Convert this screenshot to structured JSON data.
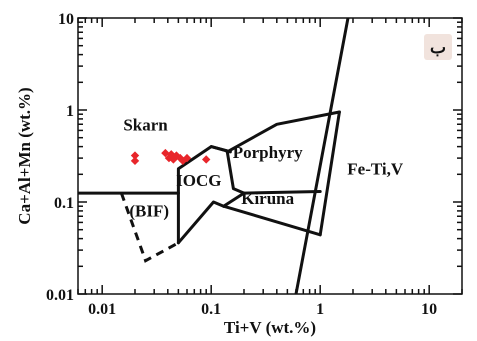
{
  "chart_data": {
    "type": "scatter",
    "xlabel": "Ti+V (wt.%)",
    "ylabel": "Ca+Al+Mn (wt.%)",
    "xscale": "log",
    "yscale": "log",
    "xlim": [
      0.006,
      20
    ],
    "ylim": [
      0.01,
      10
    ],
    "x_ticks": [
      {
        "value": 0.01,
        "label": "0.01"
      },
      {
        "value": 0.1,
        "label": "0.1"
      },
      {
        "value": 1,
        "label": "1"
      },
      {
        "value": 10,
        "label": "10"
      }
    ],
    "y_ticks": [
      {
        "value": 0.01,
        "label": "0.01"
      },
      {
        "value": 0.1,
        "label": "0.1"
      },
      {
        "value": 1,
        "label": "1"
      },
      {
        "value": 10,
        "label": "10"
      }
    ],
    "corner_mark": "ب",
    "regions": [
      {
        "name": "Skarn",
        "label_at": [
          0.025,
          0.6
        ]
      },
      {
        "name": "(BIF)",
        "label_at": [
          0.027,
          0.07
        ]
      },
      {
        "name": "IOCG",
        "label_at": [
          0.077,
          0.15
        ]
      },
      {
        "name": "Porphyry",
        "label_at": [
          0.33,
          0.3
        ]
      },
      {
        "name": "Kiruna",
        "label_at": [
          0.33,
          0.095
        ]
      },
      {
        "name": "Fe-Ti,V",
        "label_at": [
          3.2,
          0.2
        ]
      }
    ],
    "boundaries": [
      {
        "style": "solid",
        "points": [
          [
            0.006,
            0.125
          ],
          [
            0.05,
            0.125
          ]
        ]
      },
      {
        "style": "solid",
        "points": [
          [
            0.05,
            0.036
          ],
          [
            0.05,
            0.23
          ],
          [
            0.1,
            0.4
          ],
          [
            0.14,
            0.36
          ],
          [
            0.16,
            0.14
          ],
          [
            0.2,
            0.125
          ],
          [
            1.0,
            0.13
          ]
        ]
      },
      {
        "style": "solid",
        "points": [
          [
            0.05,
            0.036
          ],
          [
            0.105,
            0.1
          ],
          [
            0.13,
            0.09
          ]
        ]
      },
      {
        "style": "solid",
        "points": [
          [
            0.14,
            0.35
          ],
          [
            0.4,
            0.7
          ],
          [
            1.5,
            0.95
          ]
        ]
      },
      {
        "style": "solid",
        "points": [
          [
            0.13,
            0.09
          ],
          [
            0.2,
            0.125
          ]
        ]
      },
      {
        "style": "solid",
        "points": [
          [
            0.13,
            0.09
          ],
          [
            1.0,
            0.044
          ]
        ]
      },
      {
        "style": "solid",
        "points": [
          [
            0.15,
            0.35
          ],
          [
            0.1,
            0.4
          ]
        ]
      },
      {
        "style": "solid",
        "points": [
          [
            1.5,
            0.95
          ],
          [
            1.0,
            0.044
          ]
        ]
      },
      {
        "style": "solid",
        "points": [
          [
            0.6,
            0.01
          ],
          [
            1.8,
            10
          ]
        ]
      },
      {
        "style": "dashed",
        "points": [
          [
            0.015,
            0.125
          ],
          [
            0.025,
            0.023
          ],
          [
            0.05,
            0.036
          ]
        ]
      }
    ],
    "series": [
      {
        "marker": "diamond",
        "color": "#e8262b",
        "points": [
          [
            0.02,
            0.32
          ],
          [
            0.02,
            0.28
          ],
          [
            0.038,
            0.34
          ],
          [
            0.041,
            0.3
          ],
          [
            0.043,
            0.33
          ],
          [
            0.045,
            0.29
          ],
          [
            0.048,
            0.32
          ],
          [
            0.052,
            0.3
          ],
          [
            0.055,
            0.28
          ],
          [
            0.06,
            0.3
          ],
          [
            0.09,
            0.29
          ]
        ]
      }
    ],
    "grid": false
  }
}
